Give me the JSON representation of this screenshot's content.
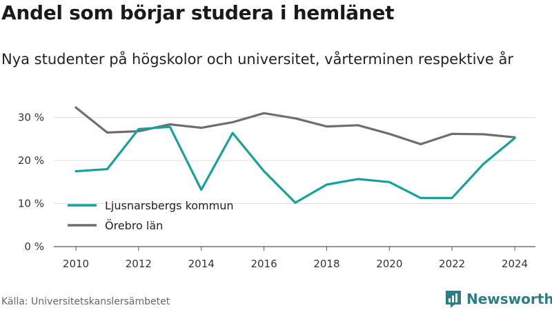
{
  "title": "Andel som börjar studera i hemlänet",
  "subtitle": "Nya studenter på högskolor och universitet, vårterminen respektive år",
  "source": "Källa: Universitetskanslersämbetet",
  "brand": {
    "name": "Newsworthy",
    "icon": "newsworthy-logo-icon",
    "color": "#2a7f86"
  },
  "chart_data": {
    "type": "line",
    "title": "Andel som börjar studera i hemlänet",
    "subtitle": "Nya studenter på högskolor och universitet, vårterminen respektive år",
    "x": [
      2010,
      2011,
      2012,
      2013,
      2014,
      2015,
      2016,
      2017,
      2018,
      2019,
      2020,
      2021,
      2022,
      2023,
      2024
    ],
    "x_ticks": [
      "2010",
      "2012",
      "2014",
      "2016",
      "2018",
      "2020",
      "2022",
      "2024"
    ],
    "y_ticks": [
      "0 %",
      "10 %",
      "20 %",
      "30 %"
    ],
    "y_tick_values": [
      0,
      10,
      20,
      30
    ],
    "ylim": [
      0,
      35
    ],
    "xlim": [
      2010,
      2024
    ],
    "grid": true,
    "legend_position": "left-middle",
    "series": [
      {
        "name": "Ljusnarsbergs kommun",
        "color": "#14a39a",
        "values": [
          17.5,
          18,
          27.3,
          27.8,
          13.2,
          26.4,
          17.5,
          10.2,
          14.4,
          15.7,
          15,
          11.3,
          11.3,
          19.2,
          25.2
        ]
      },
      {
        "name": "Örebro län",
        "color": "#6e6d74",
        "values": [
          32.3,
          26.5,
          26.8,
          28.4,
          27.6,
          28.9,
          31,
          29.8,
          27.9,
          28.2,
          26.2,
          23.8,
          26.2,
          26.1,
          25.4
        ]
      }
    ]
  }
}
